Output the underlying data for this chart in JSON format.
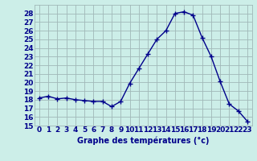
{
  "hours": [
    0,
    1,
    2,
    3,
    4,
    5,
    6,
    7,
    8,
    9,
    10,
    11,
    12,
    13,
    14,
    15,
    16,
    17,
    18,
    19,
    20,
    21,
    22,
    23
  ],
  "temperatures": [
    18.2,
    18.4,
    18.1,
    18.2,
    18.0,
    17.9,
    17.8,
    17.8,
    17.2,
    17.8,
    19.9,
    21.6,
    23.3,
    25.0,
    26.0,
    28.0,
    28.2,
    27.8,
    25.2,
    23.0,
    20.1,
    17.5,
    16.7,
    15.5
  ],
  "line_color": "#00008B",
  "marker": "+",
  "marker_size": 4,
  "marker_linewidth": 1.0,
  "line_width": 1.0,
  "bg_color": "#cceee8",
  "grid_color": "#a0b8b8",
  "xlabel": "Graphe des températures (°c)",
  "xlabel_color": "#00008B",
  "tick_color": "#00008B",
  "label_fontsize": 6.5,
  "xlabel_fontsize": 7.0,
  "ylim": [
    15,
    29
  ],
  "yticks": [
    15,
    16,
    17,
    18,
    19,
    20,
    21,
    22,
    23,
    24,
    25,
    26,
    27,
    28
  ],
  "xticks": [
    0,
    1,
    2,
    3,
    4,
    5,
    6,
    7,
    8,
    9,
    10,
    11,
    12,
    13,
    14,
    15,
    16,
    17,
    18,
    19,
    20,
    21,
    22,
    23
  ],
  "figsize": [
    3.2,
    2.0
  ],
  "dpi": 100
}
